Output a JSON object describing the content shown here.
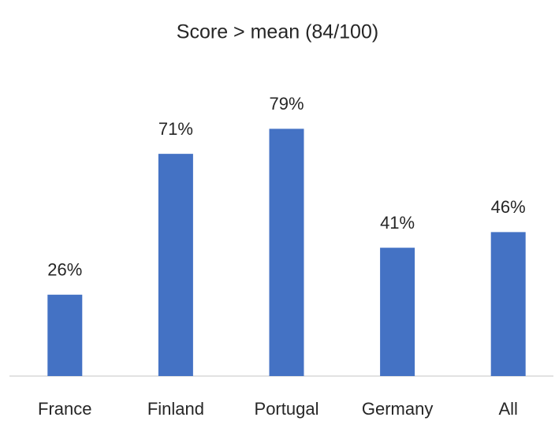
{
  "chart_data": {
    "type": "bar",
    "title": "Score > mean (84/100)",
    "categories": [
      "France",
      "Finland",
      "Portugal",
      "Germany",
      "All"
    ],
    "values": [
      26,
      71,
      79,
      41,
      46
    ],
    "value_labels": [
      "26%",
      "71%",
      "79%",
      "41%",
      "46%"
    ],
    "color": "#4472c4"
  }
}
